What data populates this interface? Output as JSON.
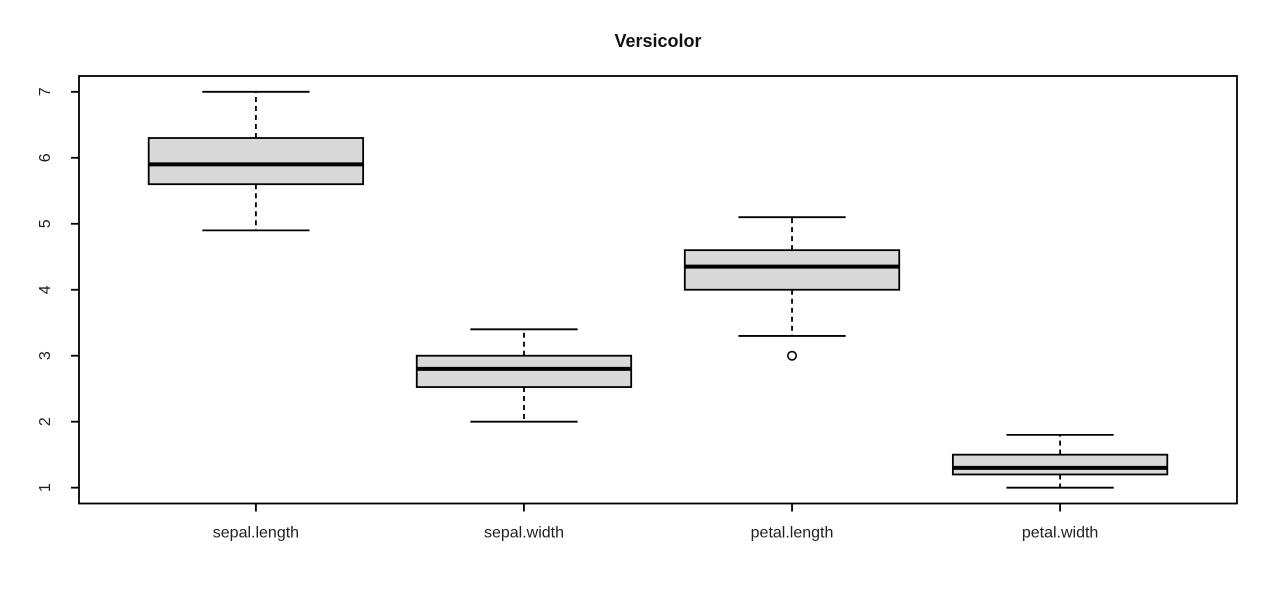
{
  "chart_data": {
    "type": "boxplot",
    "title": "Versicolor",
    "categories": [
      "sepal.length",
      "sepal.width",
      "petal.length",
      "petal.width"
    ],
    "series": [
      {
        "name": "sepal.length",
        "whisker_low": 4.9,
        "q1": 5.6,
        "median": 5.9,
        "q3": 6.3,
        "whisker_high": 7.0,
        "outliers": []
      },
      {
        "name": "sepal.width",
        "whisker_low": 2.0,
        "q1": 2.525,
        "median": 2.8,
        "q3": 3.0,
        "whisker_high": 3.4,
        "outliers": []
      },
      {
        "name": "petal.length",
        "whisker_low": 3.3,
        "q1": 4.0,
        "median": 4.35,
        "q3": 4.6,
        "whisker_high": 5.1,
        "outliers": [
          3.0
        ]
      },
      {
        "name": "petal.width",
        "whisker_low": 1.0,
        "q1": 1.2,
        "median": 1.3,
        "q3": 1.5,
        "whisker_high": 1.8,
        "outliers": []
      }
    ],
    "y_ticks": [
      1,
      2,
      3,
      4,
      5,
      6,
      7
    ],
    "ylim": [
      0.76,
      7.24
    ],
    "xlabel": "",
    "ylabel": "",
    "grid": false,
    "legend": null,
    "colors": {
      "box_fill": "#d9d9d9",
      "line": "#000000",
      "median": "#000000",
      "background": "#ffffff"
    }
  }
}
